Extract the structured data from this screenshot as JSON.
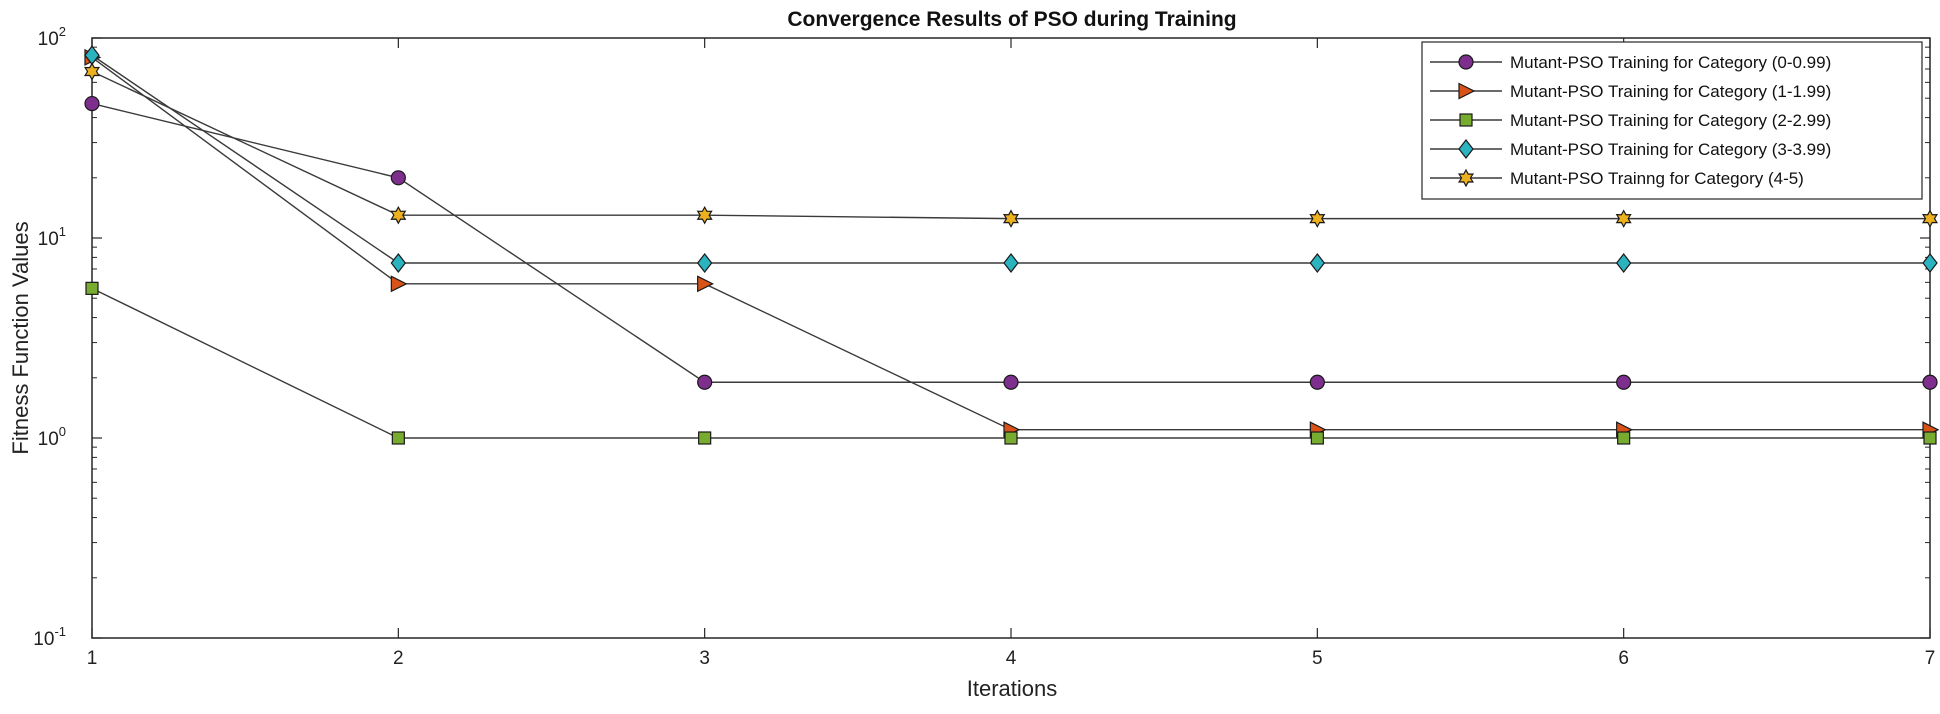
{
  "chart_data": {
    "type": "line",
    "title": "Convergence Results of PSO during Training",
    "xlabel": "Iterations",
    "ylabel": "Fitness Function Values",
    "x": [
      1,
      2,
      3,
      4,
      5,
      6,
      7
    ],
    "xlim": [
      1,
      7
    ],
    "ylim": [
      0.1,
      100
    ],
    "yscale": "log",
    "xticks": [
      "1",
      "2",
      "3",
      "4",
      "5",
      "6",
      "7"
    ],
    "yticks": [
      {
        "value": 0.1,
        "base": "10",
        "exp": "-1"
      },
      {
        "value": 1,
        "base": "10",
        "exp": "0"
      },
      {
        "value": 10,
        "base": "10",
        "exp": "1"
      },
      {
        "value": 100,
        "base": "10",
        "exp": "2"
      }
    ],
    "grid": false,
    "legend_position": "top-right",
    "series": [
      {
        "name": "Mutant-PSO Training for Category (0-0.99)",
        "marker": "circle",
        "color": "#7e2f8e",
        "values": [
          47,
          20,
          1.9,
          1.9,
          1.9,
          1.9,
          1.9
        ]
      },
      {
        "name": "Mutant-PSO Training for Category (1-1.99)",
        "marker": "triangle-right",
        "color": "#d95319",
        "values": [
          80,
          5.9,
          5.9,
          1.1,
          1.1,
          1.1,
          1.1
        ]
      },
      {
        "name": "Mutant-PSO Training for Category (2-2.99)",
        "marker": "square",
        "color": "#77ac30",
        "values": [
          5.6,
          1.0,
          1.0,
          1.0,
          1.0,
          1.0,
          1.0
        ]
      },
      {
        "name": "Mutant-PSO Training for Category (3-3.99)",
        "marker": "diamond",
        "color": "#2bb3c0",
        "values": [
          82,
          7.5,
          7.5,
          7.5,
          7.5,
          7.5,
          7.5
        ]
      },
      {
        "name": "Mutant-PSO Trainng for Category (4-5)",
        "marker": "hexagram",
        "color": "#edb120",
        "values": [
          68,
          13,
          13,
          12.5,
          12.5,
          12.5,
          12.5
        ]
      }
    ]
  }
}
